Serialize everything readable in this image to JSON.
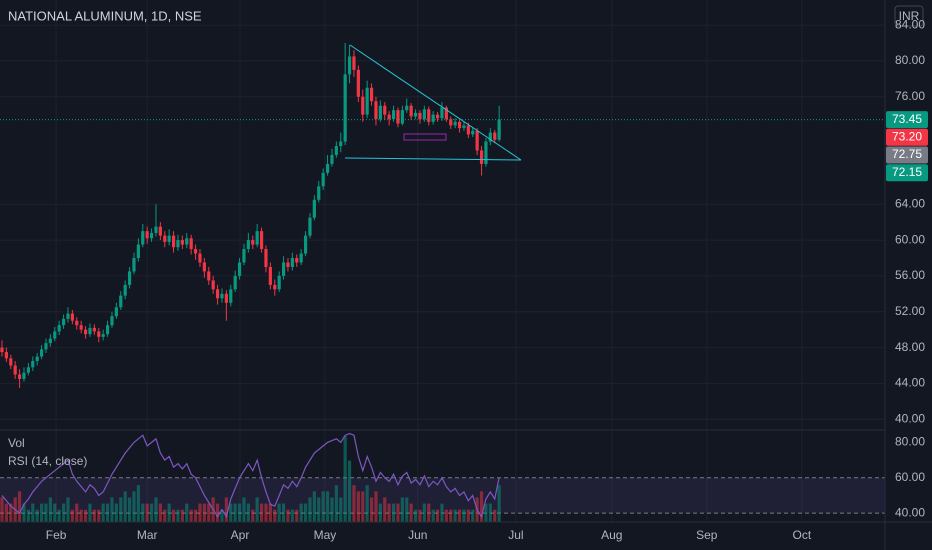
{
  "chart_data": {
    "type": "candlestick",
    "title": "NATIONAL ALUMINUM, 1D, NSE",
    "currency": "INR",
    "colors": {
      "up": "#089981",
      "down": "#f23645"
    },
    "xlim": [
      -0.45,
      200.7
    ],
    "xticks": [
      {
        "value": 12.3,
        "label": "Feb"
      },
      {
        "value": 33,
        "label": "Mar"
      },
      {
        "value": 54.1,
        "label": "Apr"
      },
      {
        "value": 73.4,
        "label": "May"
      },
      {
        "value": 94.5,
        "label": "Jun"
      },
      {
        "value": 116.8,
        "label": "Jul"
      },
      {
        "value": 138.6,
        "label": "Aug"
      },
      {
        "value": 160.2,
        "label": "Sep"
      },
      {
        "value": 181.8,
        "label": "Oct"
      }
    ],
    "ylim": [
      38.8,
      86.8
    ],
    "yticks": [
      {
        "value": 40,
        "label": "40.00"
      },
      {
        "value": 44,
        "label": "44.00"
      },
      {
        "value": 48,
        "label": "48.00"
      },
      {
        "value": 52,
        "label": "52.00"
      },
      {
        "value": 56,
        "label": "56.00"
      },
      {
        "value": 60,
        "label": "60.00"
      },
      {
        "value": 64,
        "label": "64.00"
      },
      {
        "value": 76,
        "label": "76.00"
      },
      {
        "value": 80,
        "label": "80.00"
      },
      {
        "value": 84,
        "label": "84.00"
      }
    ],
    "candles": [
      [
        48,
        48.8,
        47,
        47.5
      ],
      [
        47.5,
        48,
        46.4,
        46.8
      ],
      [
        46.8,
        47.2,
        45.6,
        46
      ],
      [
        46,
        46.5,
        44.5,
        45
      ],
      [
        45,
        45.6,
        43.5,
        44.5
      ],
      [
        44.5,
        45.8,
        44.2,
        45.2
      ],
      [
        45.2,
        46.3,
        44.9,
        45.8
      ],
      [
        45.8,
        47,
        45.4,
        46.5
      ],
      [
        46.5,
        47.4,
        46,
        47
      ],
      [
        47,
        48.3,
        46.7,
        47.8
      ],
      [
        47.8,
        49,
        47.4,
        48.5
      ],
      [
        48.5,
        49.5,
        48.1,
        49
      ],
      [
        49,
        50.3,
        48.7,
        49.8
      ],
      [
        49.8,
        51,
        49.4,
        50.5
      ],
      [
        50.5,
        51.7,
        50.1,
        51.2
      ],
      [
        51.2,
        52.5,
        50.8,
        51.8
      ],
      [
        51.8,
        52.2,
        50.6,
        51
      ],
      [
        51,
        51.4,
        50,
        50.5
      ],
      [
        50.5,
        51,
        49.6,
        50
      ],
      [
        50,
        50.4,
        49,
        49.5
      ],
      [
        49.5,
        50.7,
        49.2,
        50.2
      ],
      [
        50.2,
        50.6,
        49.4,
        49.8
      ],
      [
        49.8,
        50.2,
        48.6,
        49.2
      ],
      [
        49.2,
        50,
        48.8,
        49.5
      ],
      [
        49.5,
        51,
        49.2,
        50.5
      ],
      [
        50.5,
        52,
        50.2,
        51.5
      ],
      [
        51.5,
        53,
        51.2,
        52.5
      ],
      [
        52.5,
        54.3,
        52.2,
        53.8
      ],
      [
        53.8,
        55.5,
        53.4,
        55
      ],
      [
        55,
        57,
        54.6,
        56.5
      ],
      [
        56.5,
        58.6,
        56.2,
        58
      ],
      [
        58,
        60.2,
        57.6,
        59.5
      ],
      [
        59.5,
        61.8,
        59.2,
        61
      ],
      [
        61,
        61.5,
        59.6,
        60.2
      ],
      [
        60.2,
        61.3,
        59.8,
        60.8
      ],
      [
        60.8,
        64,
        60.4,
        61.5
      ],
      [
        61.5,
        62,
        60,
        60.5
      ],
      [
        60.5,
        61,
        59.2,
        59.8
      ],
      [
        59.8,
        61.2,
        59.4,
        60.5
      ],
      [
        60.5,
        61,
        58.6,
        59.2
      ],
      [
        59.2,
        60.6,
        58.8,
        60
      ],
      [
        60,
        60.5,
        59,
        59.5
      ],
      [
        59.5,
        60.8,
        59.1,
        60.2
      ],
      [
        60.2,
        60.6,
        58.4,
        59
      ],
      [
        59,
        59.5,
        57.8,
        58.5
      ],
      [
        58.5,
        59,
        57,
        57.5
      ],
      [
        57.5,
        58,
        55.8,
        56.5
      ],
      [
        56.5,
        57,
        55,
        55.5
      ],
      [
        55.5,
        56,
        54,
        54.5
      ],
      [
        54.5,
        55,
        52.8,
        53.5
      ],
      [
        53.5,
        54.6,
        53,
        54
      ],
      [
        54,
        54.4,
        51,
        53
      ],
      [
        53,
        55,
        52.6,
        54.5
      ],
      [
        54.5,
        56.6,
        54.2,
        56
      ],
      [
        56,
        58,
        55.6,
        57.5
      ],
      [
        57.5,
        59.6,
        57.2,
        59
      ],
      [
        59,
        60.8,
        58.6,
        60
      ],
      [
        60,
        60.5,
        59,
        59.5
      ],
      [
        59.5,
        61.8,
        59.2,
        61
      ],
      [
        61,
        61.4,
        58.6,
        59
      ],
      [
        59,
        59.4,
        56.4,
        57
      ],
      [
        57,
        57.5,
        54.5,
        55
      ],
      [
        55,
        55.6,
        53.8,
        54.5
      ],
      [
        54.5,
        56.5,
        54.2,
        56
      ],
      [
        56,
        58.2,
        55.6,
        57.5
      ],
      [
        57.5,
        58,
        56.5,
        57
      ],
      [
        57,
        58.6,
        56.6,
        58
      ],
      [
        58,
        58.4,
        57,
        57.5
      ],
      [
        57.5,
        59,
        57.2,
        58.5
      ],
      [
        58.5,
        61,
        58.2,
        60.5
      ],
      [
        60.5,
        63,
        60.2,
        62.5
      ],
      [
        62.5,
        65,
        62.2,
        64.5
      ],
      [
        64.5,
        66.6,
        64.2,
        66
      ],
      [
        66,
        68,
        65.6,
        67.5
      ],
      [
        67.5,
        69.5,
        67.2,
        68.5
      ],
      [
        68.5,
        70.2,
        68.2,
        69.5
      ],
      [
        69.5,
        71,
        69.2,
        70.5
      ],
      [
        70.5,
        72,
        69.8,
        71
      ],
      [
        71,
        82,
        70.6,
        78.5
      ],
      [
        78.5,
        81.8,
        77.5,
        80.5
      ],
      [
        80.5,
        81.2,
        78.2,
        79
      ],
      [
        79,
        79.5,
        75.4,
        76
      ],
      [
        76,
        76.8,
        73.2,
        74
      ],
      [
        74,
        77.8,
        73.6,
        77
      ],
      [
        77,
        77.5,
        75,
        75.5
      ],
      [
        75.5,
        76,
        72.8,
        73.5
      ],
      [
        73.5,
        75.6,
        73.2,
        75
      ],
      [
        75,
        75.4,
        73.4,
        74
      ],
      [
        74,
        74.4,
        72.8,
        73.5
      ],
      [
        73.5,
        75,
        73.2,
        74.5
      ],
      [
        74.5,
        74.8,
        72.6,
        73
      ],
      [
        73,
        75,
        72.8,
        74.5
      ],
      [
        74.5,
        75.8,
        74.2,
        75
      ],
      [
        75,
        75.3,
        73.4,
        73.8
      ],
      [
        73.8,
        74.6,
        73.5,
        74.2
      ],
      [
        74.2,
        74.5,
        73,
        73.5
      ],
      [
        73.5,
        75,
        73.2,
        74.6
      ],
      [
        74.6,
        74.9,
        72.8,
        73.2
      ],
      [
        73.2,
        74.4,
        72.9,
        74
      ],
      [
        74,
        74.3,
        73.2,
        73.6
      ],
      [
        73.6,
        75.4,
        73.3,
        74.8
      ],
      [
        74.8,
        75,
        73.2,
        73.5
      ],
      [
        73.5,
        73.8,
        72.4,
        72.8
      ],
      [
        72.8,
        73.6,
        72.5,
        73.2
      ],
      [
        73.2,
        73.5,
        72,
        72.5
      ],
      [
        72.5,
        73.2,
        72.2,
        72.8
      ],
      [
        72.8,
        73.1,
        71.4,
        71.8
      ],
      [
        71.8,
        72.6,
        71.5,
        72.2
      ],
      [
        72.2,
        72.5,
        69.5,
        70
      ],
      [
        70,
        70.5,
        67.2,
        68.5
      ],
      [
        68.5,
        71.4,
        68.2,
        71
      ],
      [
        71,
        72.5,
        70.6,
        72
      ],
      [
        72,
        72.3,
        70.8,
        71.2
      ],
      [
        71.2,
        75,
        71,
        73.45
      ]
    ],
    "price_labels": [
      {
        "value": 73.45,
        "label": "73.45",
        "color": "#089981"
      },
      {
        "value": 73.2,
        "label": "73.20",
        "color": "#f23645"
      },
      {
        "value": 72.75,
        "label": "72.75",
        "color": "#787b86"
      },
      {
        "value": 72.15,
        "label": "72.15",
        "color": "#089981"
      }
    ],
    "volume": {
      "name": "Vol",
      "values": [
        4,
        3,
        3,
        4,
        5,
        3,
        2,
        3,
        2,
        3,
        3,
        4,
        3,
        2,
        3,
        4,
        2,
        3,
        2,
        2,
        3,
        2,
        2,
        3,
        3,
        4,
        3,
        4,
        5,
        4,
        5,
        6,
        3,
        3,
        3,
        4,
        3,
        2,
        3,
        2,
        2,
        2,
        3,
        2,
        2,
        3,
        3,
        3,
        4,
        3,
        2,
        4,
        3,
        3,
        3,
        4,
        3,
        2,
        4,
        3,
        3,
        3,
        2,
        3,
        3,
        2,
        2,
        2,
        3,
        3,
        4,
        5,
        4,
        5,
        5,
        4,
        6,
        4,
        14,
        10,
        6,
        5,
        5,
        6,
        4,
        5,
        3,
        4,
        3,
        3,
        3,
        4,
        4,
        3,
        2,
        2,
        3,
        3,
        2,
        2,
        3,
        2,
        2,
        2,
        2,
        2,
        2,
        2,
        4,
        5,
        3,
        3,
        2,
        6
      ]
    },
    "rsi": {
      "name": "RSI (14, close)",
      "color": "#7e57c2",
      "ylim": [
        35,
        87
      ],
      "yticks": [
        {
          "value": 40,
          "label": "40.00"
        },
        {
          "value": 60,
          "label": "60.00"
        },
        {
          "value": 80,
          "label": "80.00"
        }
      ],
      "values": [
        50,
        47,
        44,
        42,
        40,
        45,
        48,
        52,
        55,
        58,
        60,
        62,
        64,
        66,
        68,
        70,
        62,
        58,
        55,
        52,
        56,
        54,
        50,
        52,
        57,
        62,
        66,
        70,
        74,
        77,
        80,
        82,
        84,
        78,
        80,
        82,
        74,
        70,
        72,
        66,
        68,
        65,
        68,
        62,
        60,
        55,
        50,
        46,
        42,
        38,
        42,
        38,
        48,
        54,
        60,
        64,
        68,
        64,
        70,
        60,
        52,
        45,
        44,
        50,
        56,
        54,
        58,
        55,
        60,
        66,
        70,
        74,
        76,
        78,
        80,
        81,
        82,
        80,
        84,
        85,
        84,
        72,
        64,
        72,
        66,
        58,
        63,
        60,
        58,
        62,
        56,
        61,
        63,
        57,
        59,
        56,
        61,
        55,
        58,
        56,
        60,
        55,
        52,
        54,
        50,
        52,
        47,
        50,
        42,
        38,
        48,
        52,
        48,
        60
      ]
    }
  }
}
